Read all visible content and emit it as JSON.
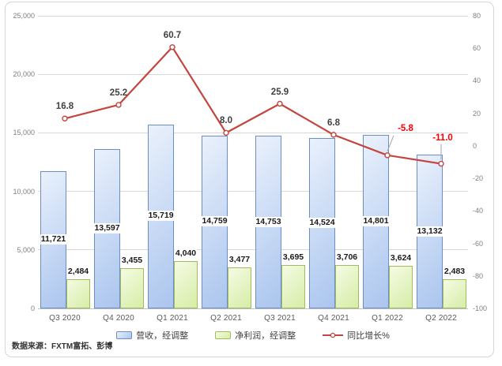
{
  "chart_data": {
    "type": "combo",
    "categories": [
      "Q3 2020",
      "Q4 2020",
      "Q1 2021",
      "Q2 2021",
      "Q3 2021",
      "Q4 2021",
      "Q1 2022",
      "Q2 2022"
    ],
    "series": [
      {
        "name": "营收，经调整",
        "type": "bar",
        "axis": "left",
        "values": [
          11721,
          13597,
          15719,
          14759,
          14753,
          14524,
          14801,
          13132
        ],
        "value_labels": [
          "11,721",
          "13,597",
          "15,719",
          "14,759",
          "14,753",
          "14,524",
          "14,801",
          "13,132"
        ],
        "fill_from": "#eaf1fc",
        "fill_to": "#aac5ee",
        "border": "#6b8ec4"
      },
      {
        "name": "净利润，经调整",
        "type": "bar",
        "axis": "left",
        "values": [
          2484,
          3455,
          4040,
          3477,
          3695,
          3706,
          3624,
          2483
        ],
        "value_labels": [
          "2,484",
          "3,455",
          "4,040",
          "3,477",
          "3,695",
          "3,706",
          "3,624",
          "2,483"
        ],
        "fill_from": "#f5fbe4",
        "fill_to": "#d6eda6",
        "border": "#a1bb60"
      },
      {
        "name": "同比增长%",
        "type": "line",
        "axis": "right",
        "values": [
          16.8,
          25.2,
          60.7,
          8.0,
          25.9,
          6.8,
          -5.8,
          -11.0
        ],
        "value_labels": [
          "16.8",
          "25.2",
          "60.7",
          "8.0",
          "25.9",
          "6.8",
          "-5.8",
          "-11.0"
        ],
        "color": "#c3453e",
        "marker": "circle-open"
      }
    ],
    "left_axis": {
      "min": 0,
      "max": 25000,
      "step": 5000,
      "tick_labels": [
        "25,000",
        "20,000",
        "15,000",
        "10,000",
        "5,000",
        "0"
      ]
    },
    "right_axis": {
      "min": -100,
      "max": 80,
      "step": 20,
      "tick_labels": [
        "80",
        "60",
        "40",
        "20",
        "0",
        "-20",
        "-40",
        "-60",
        "-80",
        "-100"
      ]
    },
    "grid": "horizontal-only",
    "legend_position": "bottom",
    "title": "",
    "source_note": "数据来源：FXTM富拓、彭博"
  },
  "colors": {
    "gridline": "#d9d9d9",
    "axis_line": "#c0c0c0",
    "axis_text": "#808080",
    "category_text": "#595959",
    "bar_label": "#1a1a1a",
    "growth_label": "#404040",
    "negative_growth_label": "#ff0000",
    "leader_line": "#a6a6a6",
    "frame_border": "#d6d6d6",
    "background": "#ffffff"
  }
}
